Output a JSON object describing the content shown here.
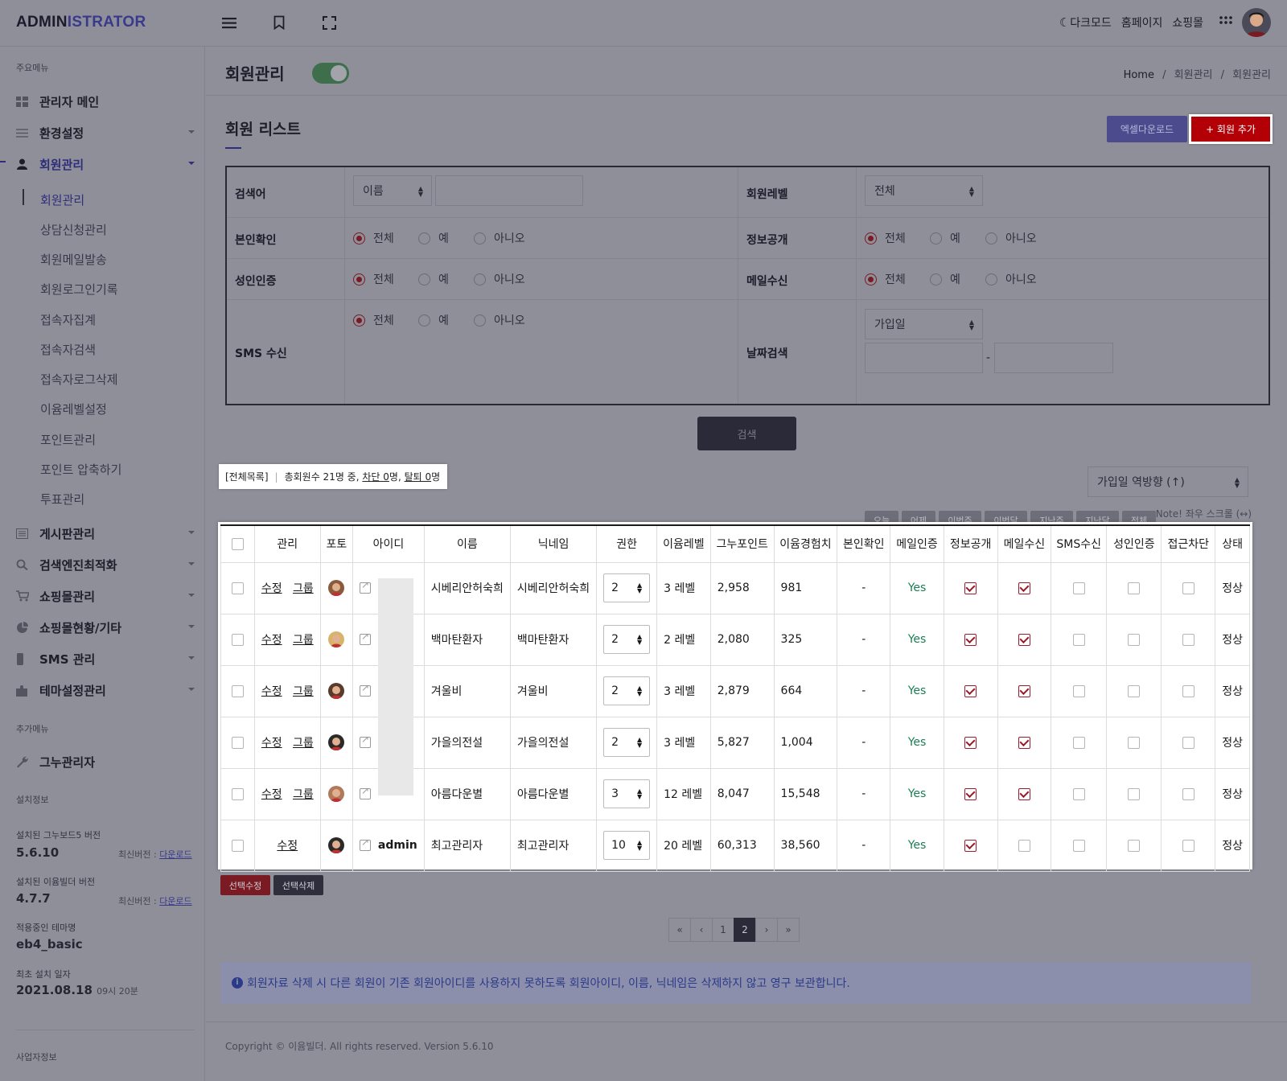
{
  "topbar": {
    "logo_a": "ADMIN",
    "logo_b": "ISTRATOR",
    "dark_mode": "다크모드",
    "homepage": "홈페이지",
    "shop": "쇼핑몰"
  },
  "sidebar": {
    "main_section": "주요메뉴",
    "items": [
      {
        "label": "관리자 메인",
        "icon": "dashboard-icon"
      },
      {
        "label": "환경설정",
        "icon": "sliders-icon"
      },
      {
        "label": "회원관리",
        "icon": "user-icon"
      },
      {
        "label": "게시판관리",
        "icon": "board-icon"
      },
      {
        "label": "검색엔진최적화",
        "icon": "search-icon"
      },
      {
        "label": "쇼핑몰관리",
        "icon": "cart-icon"
      },
      {
        "label": "쇼핑몰현황/기타",
        "icon": "pie-chart-icon"
      },
      {
        "label": "SMS 관리",
        "icon": "mobile-icon"
      },
      {
        "label": "테마설정관리",
        "icon": "puzzle-icon"
      }
    ],
    "sub_items": [
      "회원관리",
      "상담신청관리",
      "회원메일발송",
      "회원로그인기록",
      "접속자집계",
      "접속자검색",
      "접속자로그삭제",
      "이윰레벨설정",
      "포인트관리",
      "포인트 압축하기",
      "투표관리"
    ],
    "extra_section": "추가메뉴",
    "extra_item": "그누관리자",
    "install_section": "설치정보",
    "gnu_label": "설치된 그누보드5 버전",
    "gnu_value": "5.6.10",
    "eyoom_label": "설치된 이윰빌더 버전",
    "eyoom_value": "4.7.7",
    "latest_prefix": "최신버전 : ",
    "download": "다운로드",
    "theme_label": "적용중인 테마명",
    "theme_value": "eb4_basic",
    "install_date_label": "최초 설치 일자",
    "install_date": "2021.08.18",
    "install_time": "09시 20분",
    "business_label": "사업자정보"
  },
  "page": {
    "title": "회원관리",
    "breadcrumb": [
      "Home",
      "회원관리",
      "회원관리"
    ],
    "list_title": "회원 리스트",
    "excel_button": "엑셀다운로드",
    "add_button": "+ 회원 추가"
  },
  "search": {
    "keyword_label": "검색어",
    "keyword_select": "이름",
    "keyword_value": "",
    "level_label": "회원레벨",
    "level_select": "전체",
    "verify_label": "본인확인",
    "open_label": "정보공개",
    "adult_label": "성인인증",
    "mail_label": "메일수신",
    "sms_label": "SMS 수신",
    "date_label": "날짜검색",
    "date_select": "가입일",
    "date_sep": "-",
    "radio_all": "전체",
    "radio_yes": "예",
    "radio_no": "아니오",
    "date_buttons": [
      "오늘",
      "어제",
      "이번주",
      "이번달",
      "지난주",
      "지난달",
      "전체"
    ],
    "search_button": "검색"
  },
  "summary": {
    "all_list": "[전체목록]",
    "total_text": "총회원수 21명 중,",
    "block_link": "차단 0",
    "block_unit": "명,",
    "leave_link": "탈퇴 0",
    "leave_unit": "명"
  },
  "sort_select": "가입일 역방향 (↑)",
  "scroll_note": "Note! 좌우 스크롤 (↔)",
  "table": {
    "headers": [
      "관리",
      "포토",
      "아이디",
      "이름",
      "닉네임",
      "권한",
      "이윰레벨",
      "그누포인트",
      "이윰경험치",
      "본인확인",
      "메일인증",
      "정보공개",
      "메일수신",
      "SMS수신",
      "성인인증",
      "접근차단",
      "상태"
    ],
    "edit_label": "수정",
    "group_label": "그룹",
    "rows": [
      {
        "id": "",
        "name": "시베리안허숙희",
        "nick": "시베리안허숙희",
        "perm": "2",
        "level": "3 레벨",
        "point": "2,958",
        "exp": "981",
        "verify": "-",
        "mailauth": "Yes",
        "open": true,
        "mail": true,
        "sms": false,
        "adult": false,
        "block": false,
        "status": "정상",
        "group": true,
        "photo_color": "#8a5a3a"
      },
      {
        "id": "",
        "name": "백마탄환자",
        "nick": "백마탄환자",
        "perm": "2",
        "level": "2 레벨",
        "point": "2,080",
        "exp": "325",
        "verify": "-",
        "mailauth": "Yes",
        "open": true,
        "mail": true,
        "sms": false,
        "adult": false,
        "block": false,
        "status": "정상",
        "group": true,
        "photo_color": "#d8b46a"
      },
      {
        "id": "",
        "name": "겨울비",
        "nick": "겨울비",
        "perm": "2",
        "level": "3 레벨",
        "point": "2,879",
        "exp": "664",
        "verify": "-",
        "mailauth": "Yes",
        "open": true,
        "mail": true,
        "sms": false,
        "adult": false,
        "block": false,
        "status": "정상",
        "group": true,
        "photo_color": "#5a3a2a"
      },
      {
        "id": "",
        "name": "가을의전설",
        "nick": "가을의전설",
        "perm": "2",
        "level": "3 레벨",
        "point": "5,827",
        "exp": "1,004",
        "verify": "-",
        "mailauth": "Yes",
        "open": true,
        "mail": true,
        "sms": false,
        "adult": false,
        "block": false,
        "status": "정상",
        "group": true,
        "photo_color": "#2a2a2a"
      },
      {
        "id": "",
        "name": "아름다운별",
        "nick": "아름다운별",
        "perm": "3",
        "level": "12 레벨",
        "point": "8,047",
        "exp": "15,548",
        "verify": "-",
        "mailauth": "Yes",
        "open": true,
        "mail": true,
        "sms": false,
        "adult": false,
        "block": false,
        "status": "정상",
        "group": true,
        "photo_color": "#b07a5a"
      },
      {
        "id": "admin",
        "name": "최고관리자",
        "nick": "최고관리자",
        "perm": "10",
        "level": "20 레벨",
        "point": "60,313",
        "exp": "38,560",
        "verify": "-",
        "mailauth": "Yes",
        "open": true,
        "mail": false,
        "sms": false,
        "adult": false,
        "block": false,
        "status": "정상",
        "group": false,
        "photo_color": "#2a2a2a"
      }
    ]
  },
  "actions": {
    "edit_selected": "선택수정",
    "delete_selected": "선택삭제"
  },
  "pagination": {
    "first": "«",
    "prev": "‹",
    "pages": [
      "1",
      "2"
    ],
    "current": "2",
    "next": "›",
    "last": "»"
  },
  "alert": "회원자료 삭제 시 다른 회원이 기존 회원아이디를 사용하지 못하도록 회원아이디, 이름, 닉네임은 삭제하지 않고 영구 보관합니다.",
  "footer": "Copyright © 이윰빌더. All rights reserved. Version 5.6.10",
  "colors": {
    "brand": "#3a3a8c",
    "danger": "#b20006",
    "success": "#1a7e53"
  }
}
